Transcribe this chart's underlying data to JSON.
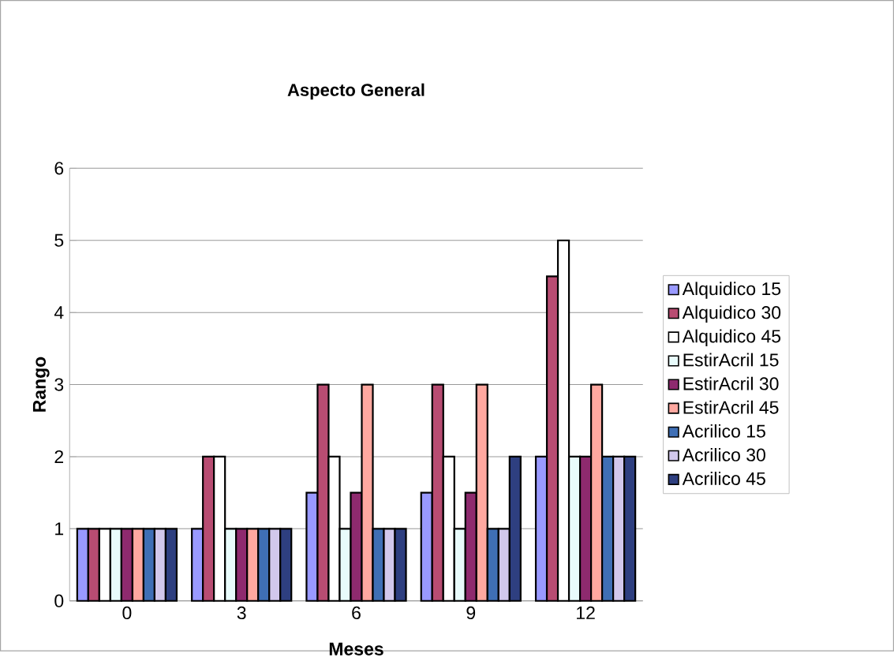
{
  "chart_data": {
    "type": "bar",
    "title": "Aspecto General",
    "xlabel": "Meses",
    "ylabel": "Rango",
    "categories": [
      "0",
      "3",
      "6",
      "9",
      "12"
    ],
    "series": [
      {
        "name": "Alquidico 15",
        "color": "#9999ff",
        "values": [
          1,
          1,
          1.5,
          1.5,
          2
        ]
      },
      {
        "name": "Alquidico 30",
        "color": "#b84c72",
        "values": [
          1,
          2,
          3,
          3,
          4.5
        ]
      },
      {
        "name": "Alquidico 45",
        "color": "#ffffff",
        "values": [
          1,
          2,
          2,
          2,
          5
        ]
      },
      {
        "name": "EstirAcril 15",
        "color": "#e8fbfb",
        "values": [
          1,
          1,
          1,
          1,
          2
        ]
      },
      {
        "name": "EstirAcril 30",
        "color": "#8e2a6e",
        "values": [
          1,
          1,
          1.5,
          1.5,
          2
        ]
      },
      {
        "name": "EstirAcril 45",
        "color": "#ffa8a0",
        "values": [
          1,
          1,
          3,
          3,
          3
        ]
      },
      {
        "name": "Acrilico 15",
        "color": "#3f6fb5",
        "values": [
          1,
          1,
          1,
          1,
          2
        ]
      },
      {
        "name": "Acrilico 30",
        "color": "#d2c8ec",
        "values": [
          1,
          1,
          1,
          1,
          2
        ]
      },
      {
        "name": "Acrilico 45",
        "color": "#2e3f80",
        "values": [
          1,
          1,
          1,
          2,
          2
        ]
      }
    ],
    "ylim": [
      0,
      6
    ],
    "yticks": [
      0,
      1,
      2,
      3,
      4,
      5,
      6
    ],
    "grid": "y",
    "legend": "right"
  }
}
